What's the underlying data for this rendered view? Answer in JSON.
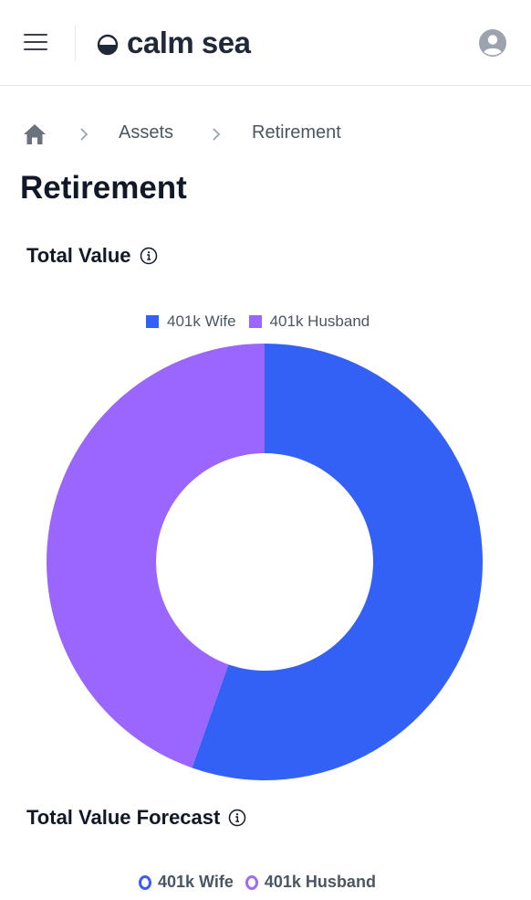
{
  "header": {
    "logo_text": "calm sea",
    "icons": [
      "menu-icon",
      "logo-icon",
      "account-icon"
    ]
  },
  "breadcrumb": {
    "items": [
      {
        "label": "",
        "icon": "home-icon"
      },
      {
        "label": "Assets"
      },
      {
        "label": "Retirement"
      }
    ]
  },
  "page": {
    "title": "Retirement"
  },
  "sections": {
    "total_value": {
      "title": "Total Value"
    },
    "forecast": {
      "title": "Total Value Forecast",
      "legend": [
        {
          "label": "401k Wife",
          "color": "#3b5bf6"
        },
        {
          "label": "401k Husband",
          "color": "#9c6cfb"
        }
      ]
    }
  },
  "colors": {
    "wife": "#3461f5",
    "husband": "#9a66fd",
    "accent": "#3461f5"
  },
  "chart_data": {
    "type": "pie",
    "title": "Total Value",
    "series": [
      {
        "name": "401k Wife",
        "value": 55.4,
        "color": "#3461f5"
      },
      {
        "name": "401k Husband",
        "value": 44.6,
        "color": "#9a66fd"
      }
    ],
    "donut": true,
    "legend_position": "top"
  }
}
